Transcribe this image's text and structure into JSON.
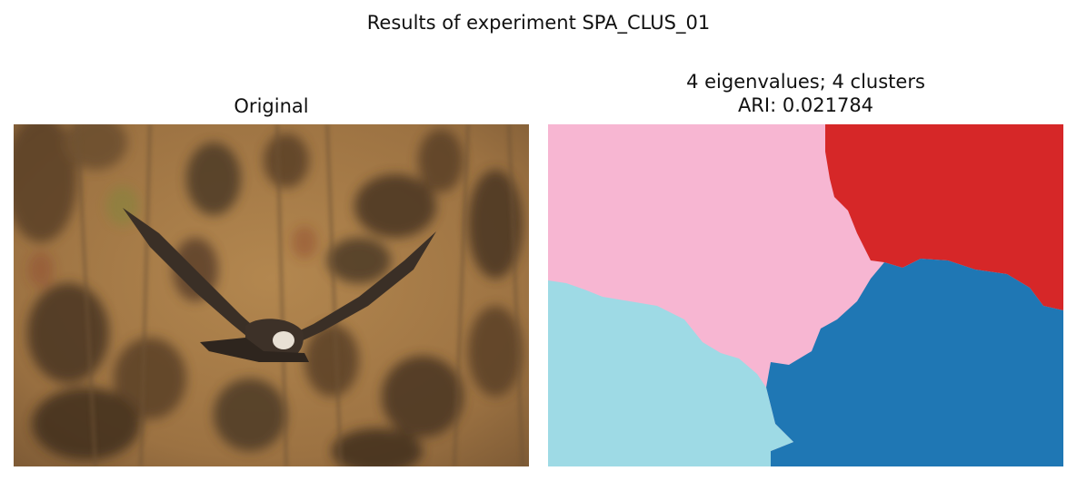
{
  "figure": {
    "title": "Results of experiment SPA_CLUS_01"
  },
  "left_panel": {
    "title": "Original",
    "colors": {
      "background": "#a57a48",
      "dark_foliage": "#4a3624",
      "bird": "#3d3128"
    }
  },
  "right_panel": {
    "title_line1": "4 eigenvalues; 4 clusters",
    "title_line2": "ARI: 0.021784",
    "cluster_colors": {
      "pink": "#f7b6d2",
      "red": "#d62728",
      "light_blue": "#9edae5",
      "blue": "#1f77b4"
    }
  }
}
